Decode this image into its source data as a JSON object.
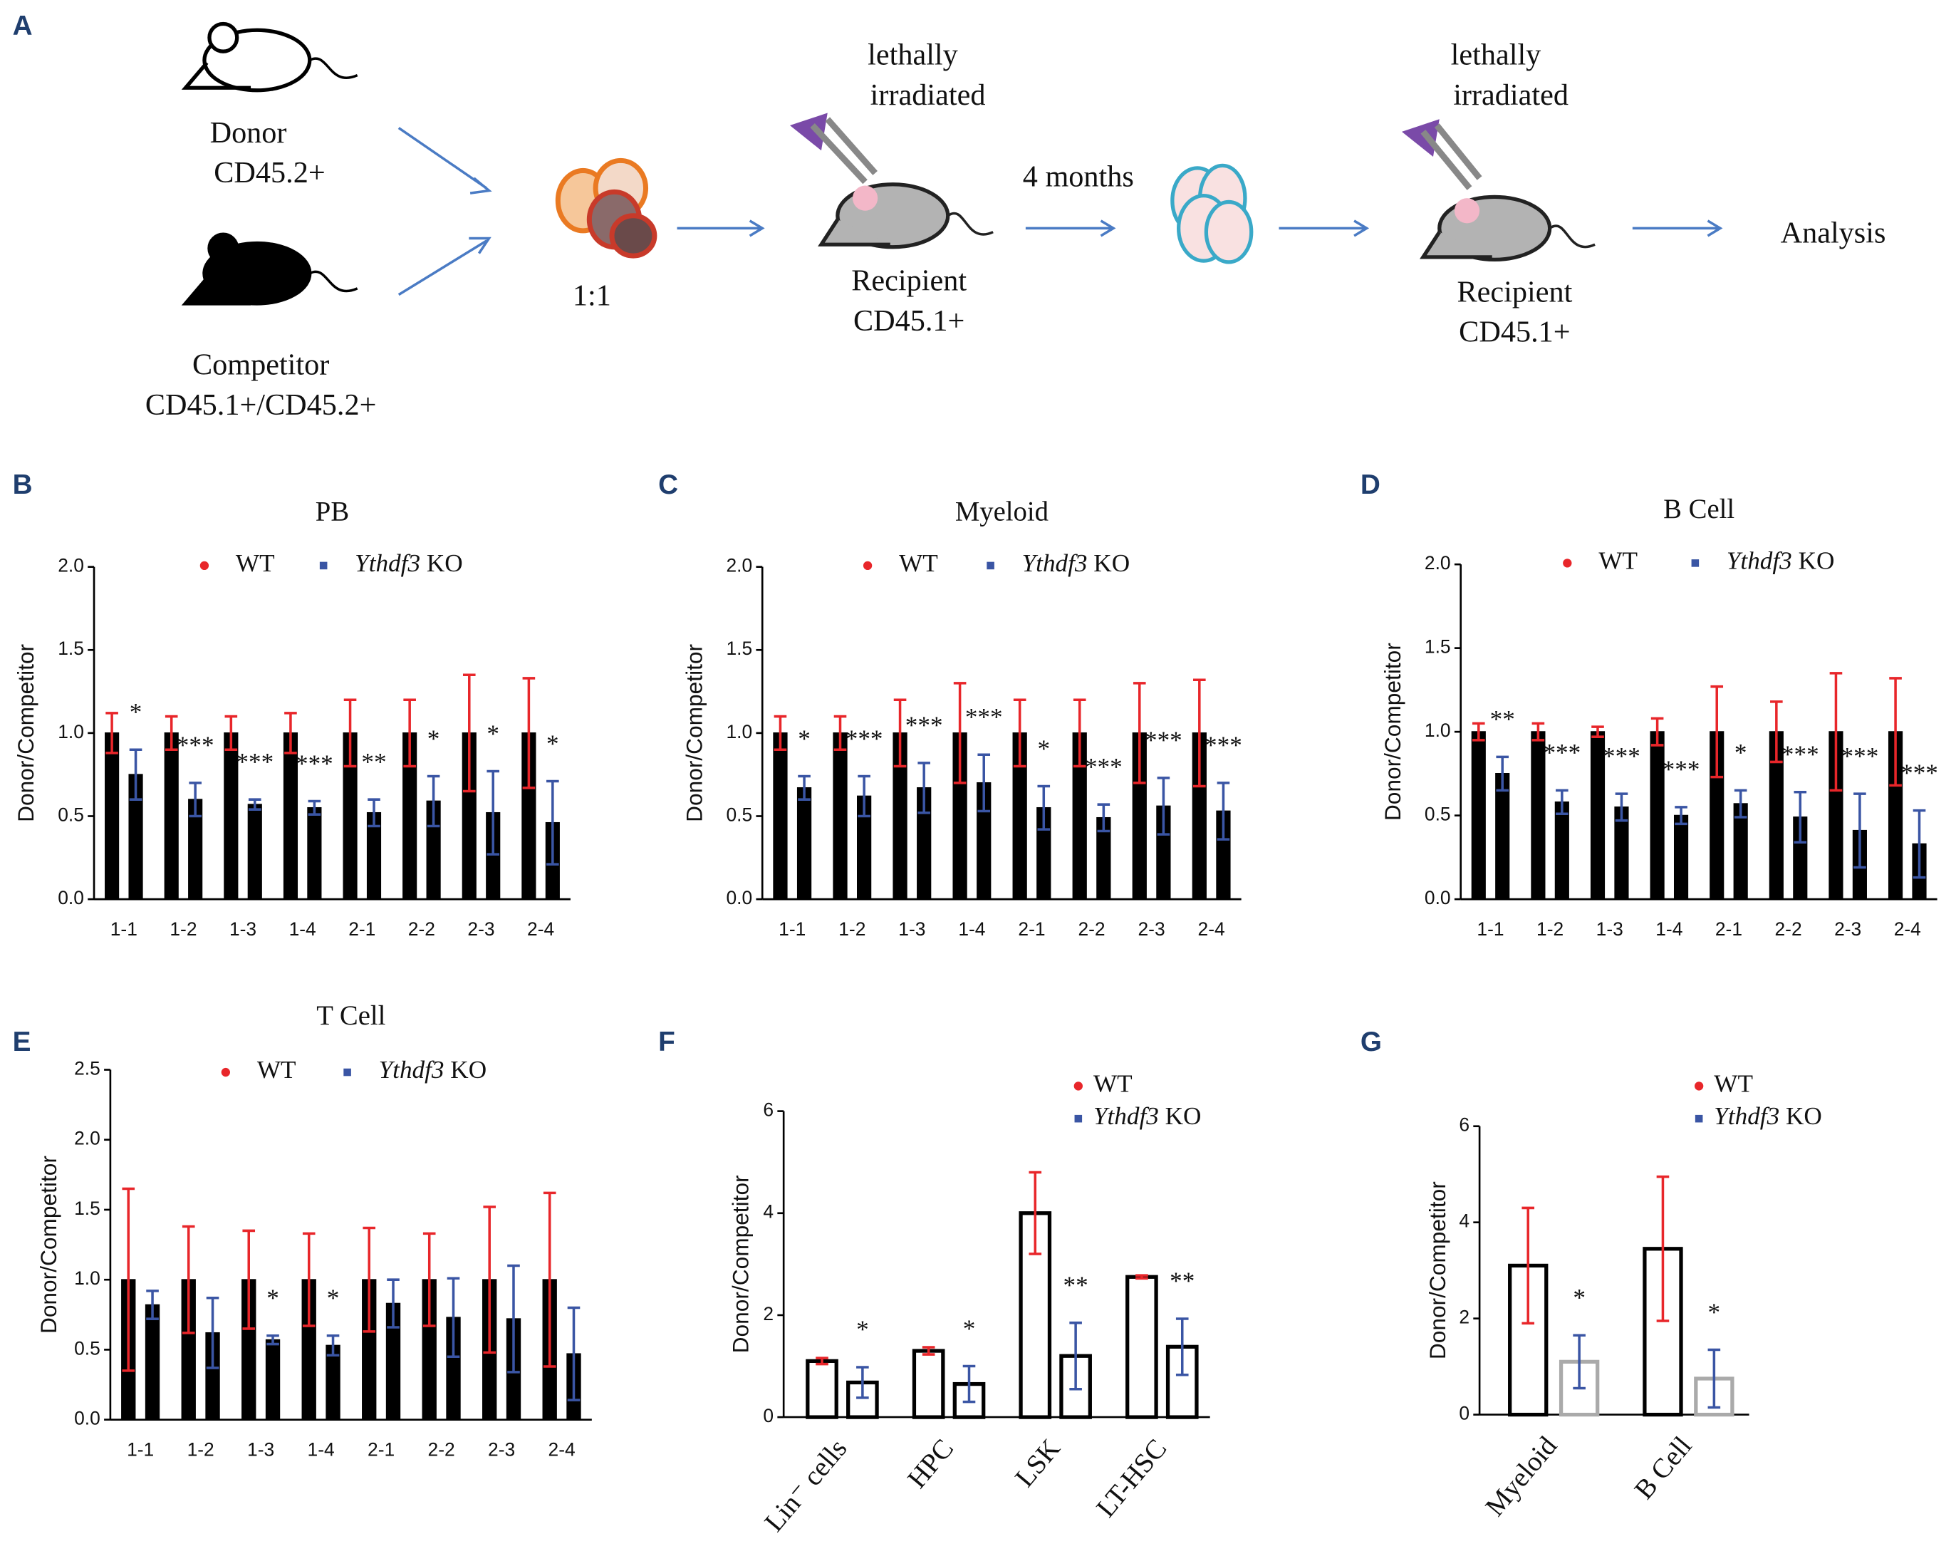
{
  "panels": [
    "A",
    "B",
    "C",
    "D",
    "E",
    "F",
    "G"
  ],
  "diagram": {
    "donor": [
      "Donor",
      "CD45.2+"
    ],
    "competitor": [
      "Competitor",
      "CD45.1+/CD45.2+"
    ],
    "ratio": "1:1",
    "irradiated_1": [
      "lethally",
      "irradiated"
    ],
    "recipient_1": [
      "Recipient",
      "CD45.1+"
    ],
    "interval": "4 months",
    "irradiated_2": [
      "lethally",
      "irradiated"
    ],
    "recipient_2": [
      "Recipient",
      "CD45.1+"
    ],
    "analysis": "Analysis"
  },
  "chart_data": [
    {
      "type": "bar",
      "title": "PB",
      "ylabel": "Donor/Competitor",
      "bar_fill": true,
      "legend": "upper center",
      "categories": [
        "1-1",
        "1-2",
        "1-3",
        "1-4",
        "2-1",
        "2-2",
        "2-3",
        "2-4"
      ],
      "series": [
        {
          "name": "WT",
          "color": "#e8262a",
          "bar_color": "#000000",
          "values": [
            1,
            1,
            1,
            1,
            1,
            1,
            1,
            1
          ],
          "errors": [
            0.12,
            0.1,
            0.1,
            0.12,
            0.2,
            0.2,
            0.35,
            0.33
          ]
        },
        {
          "name": "Ythdf3 KO",
          "color": "#3a55a4",
          "bar_color": "#000000",
          "values": [
            0.75,
            0.6,
            0.57,
            0.55,
            0.52,
            0.59,
            0.52,
            0.46
          ],
          "errors": [
            0.15,
            0.1,
            0.03,
            0.04,
            0.08,
            0.15,
            0.25,
            0.25
          ]
        }
      ],
      "annotations": [
        "*",
        "***",
        "***",
        "***",
        "**",
        "*",
        "*",
        "*"
      ],
      "ylim": [
        0,
        2
      ],
      "yticks": [
        {
          "value": 0,
          "label": "0.0"
        },
        0.5,
        {
          "value": 1,
          "label": "1.0"
        },
        1.5,
        {
          "value": 2,
          "label": "2.0"
        }
      ]
    },
    {
      "type": "bar",
      "title": "Myeloid",
      "ylabel": "Donor/Competitor",
      "bar_fill": true,
      "legend": "upper center",
      "categories": [
        "1-1",
        "1-2",
        "1-3",
        "1-4",
        "2-1",
        "2-2",
        "2-3",
        "2-4"
      ],
      "series": [
        {
          "name": "WT",
          "color": "#e8262a",
          "bar_color": "#000000",
          "values": [
            1,
            1,
            1,
            1,
            1,
            1,
            1,
            1
          ],
          "errors": [
            0.1,
            0.1,
            0.2,
            0.3,
            0.2,
            0.2,
            0.3,
            0.32
          ]
        },
        {
          "name": "Ythdf3 KO",
          "color": "#3a55a4",
          "bar_color": "#000000",
          "values": [
            0.67,
            0.62,
            0.67,
            0.7,
            0.55,
            0.49,
            0.56,
            0.53
          ],
          "errors": [
            0.07,
            0.12,
            0.15,
            0.17,
            0.13,
            0.08,
            0.17,
            0.17
          ]
        }
      ],
      "annotations": [
        "*",
        "***",
        "***",
        "***",
        "*",
        "***",
        "***",
        "***"
      ],
      "ylim": [
        0,
        2
      ],
      "yticks": [
        {
          "value": 0,
          "label": "0.0"
        },
        0.5,
        {
          "value": 1,
          "label": "1.0"
        },
        1.5,
        {
          "value": 2,
          "label": "2.0"
        }
      ]
    },
    {
      "type": "bar",
      "title": "B Cell",
      "ylabel": "Donor/Competitor",
      "bar_fill": true,
      "legend": "upper center",
      "categories": [
        "1-1",
        "1-2",
        "1-3",
        "1-4",
        "2-1",
        "2-2",
        "2-3",
        "2-4"
      ],
      "series": [
        {
          "name": "WT",
          "color": "#e8262a",
          "bar_color": "#000000",
          "values": [
            1,
            1,
            1,
            1,
            1,
            1,
            1,
            1
          ],
          "errors": [
            0.05,
            0.05,
            0.03,
            0.08,
            0.27,
            0.18,
            0.35,
            0.32
          ]
        },
        {
          "name": "Ythdf3 KO",
          "color": "#3a55a4",
          "bar_color": "#000000",
          "values": [
            0.75,
            0.58,
            0.55,
            0.5,
            0.57,
            0.49,
            0.41,
            0.33
          ],
          "errors": [
            0.1,
            0.07,
            0.08,
            0.05,
            0.08,
            0.15,
            0.22,
            0.2
          ]
        }
      ],
      "annotations": [
        "**",
        "***",
        "***",
        "***",
        "*",
        "***",
        "***",
        "***"
      ],
      "ylim": [
        0,
        2
      ],
      "yticks": [
        {
          "value": 0,
          "label": "0.0"
        },
        0.5,
        {
          "value": 1,
          "label": "1.0"
        },
        1.5,
        {
          "value": 2,
          "label": "2.0"
        }
      ]
    },
    {
      "type": "bar",
      "title": "T Cell",
      "ylabel": "Donor/Competitor",
      "bar_fill": true,
      "legend": "upper center",
      "categories": [
        "1-1",
        "1-2",
        "1-3",
        "1-4",
        "2-1",
        "2-2",
        "2-3",
        "2-4"
      ],
      "series": [
        {
          "name": "WT",
          "color": "#e8262a",
          "bar_color": "#000000",
          "values": [
            1,
            1,
            1,
            1,
            1,
            1,
            1,
            1
          ],
          "errors": [
            0.65,
            0.38,
            0.35,
            0.33,
            0.37,
            0.33,
            0.52,
            0.62
          ]
        },
        {
          "name": "Ythdf3 KO",
          "color": "#3a55a4",
          "bar_color": "#000000",
          "values": [
            0.82,
            0.62,
            0.57,
            0.53,
            0.83,
            0.73,
            0.72,
            0.47
          ],
          "errors": [
            0.1,
            0.25,
            0.03,
            0.07,
            0.17,
            0.28,
            0.38,
            0.33
          ]
        }
      ],
      "annotations": [
        null,
        null,
        "*",
        "*",
        null,
        null,
        null,
        null
      ],
      "ylim": [
        0,
        2.5
      ],
      "yticks": [
        {
          "value": 0,
          "label": "0.0"
        },
        0.5,
        {
          "value": 1,
          "label": "1.0"
        },
        1.5,
        {
          "value": 2,
          "label": "2.0"
        },
        2.5
      ]
    },
    {
      "type": "bar",
      "ylabel": "Donor/Competitor",
      "bar_fill": false,
      "legend": "upper right",
      "categories": [
        "Lin⁻ cells",
        "HPC",
        "LSK",
        "LT-HSC"
      ],
      "series": [
        {
          "name": "WT",
          "color": "#e8262a",
          "bar_color": "#000000",
          "values": [
            1.1,
            1.3,
            4.0,
            2.75
          ],
          "errors": [
            0.06,
            0.07,
            0.8,
            0.03
          ]
        },
        {
          "name": "Ythdf3 KO",
          "color": "#3a55a4",
          "bar_color": "#000000",
          "values": [
            0.68,
            0.65,
            1.2,
            1.38
          ],
          "errors": [
            0.3,
            0.35,
            0.65,
            0.55
          ]
        }
      ],
      "annotations": [
        "*",
        "*",
        "**",
        "**"
      ],
      "ylim": [
        0,
        6
      ],
      "yticks": [
        0,
        2,
        4,
        6
      ]
    },
    {
      "type": "bar",
      "ylabel": "Donor/Competitor",
      "bar_fill": false,
      "legend": "upper right",
      "categories": [
        "Myeloid",
        "B Cell"
      ],
      "series": [
        {
          "name": "WT",
          "color": "#e8262a",
          "bar_color": "#000000",
          "values": [
            3.1,
            3.45
          ],
          "errors": [
            1.2,
            1.5
          ]
        },
        {
          "name": "Ythdf3 KO",
          "color": "#3a55a4",
          "bar_color": "#aaaaaa",
          "values": [
            1.1,
            0.75
          ],
          "errors": [
            0.55,
            0.6
          ]
        }
      ],
      "annotations": [
        "*",
        "*"
      ],
      "ylim": [
        0,
        6
      ],
      "yticks": [
        0,
        2,
        4,
        6
      ]
    }
  ]
}
